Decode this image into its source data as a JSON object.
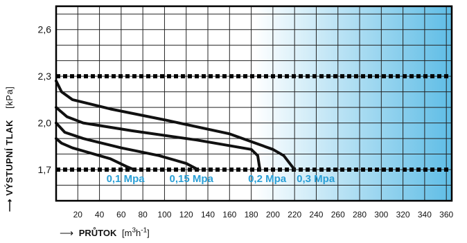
{
  "chart_data": {
    "type": "line",
    "title": "",
    "xlabel": {
      "name": "PRŮTOK",
      "unit_prefix": "[m",
      "unit_sup1": "3",
      "unit_mid": "h",
      "unit_sup2": "-1",
      "unit_suffix": "]"
    },
    "ylabel": {
      "name": "VÝSTUPNÍ TLAK",
      "unit": "[kPa]"
    },
    "xlim": [
      0,
      365
    ],
    "ylim": [
      1.5,
      2.75
    ],
    "x_ticks": [
      "20",
      "40",
      "60",
      "80",
      "100",
      "120",
      "140",
      "160",
      "180",
      "200",
      "220",
      "240",
      "260",
      "280",
      "300",
      "320",
      "340",
      "360"
    ],
    "y_ticks": [
      "1,7",
      "2,0",
      "2,3",
      "2,6"
    ],
    "grid": true,
    "reference_lines": [
      2.3,
      1.7
    ],
    "series": [
      {
        "name": "0,1 Mpa",
        "points": [
          [
            0,
            1.9
          ],
          [
            5,
            1.87
          ],
          [
            15,
            1.84
          ],
          [
            30,
            1.81
          ],
          [
            50,
            1.77
          ],
          [
            65,
            1.72
          ],
          [
            72,
            1.7
          ]
        ]
      },
      {
        "name": "0,15 Mpa",
        "points": [
          [
            0,
            2.0
          ],
          [
            8,
            1.94
          ],
          [
            25,
            1.9
          ],
          [
            60,
            1.84
          ],
          [
            95,
            1.79
          ],
          [
            120,
            1.74
          ],
          [
            131,
            1.7
          ]
        ]
      },
      {
        "name": "0,2 Mpa",
        "points": [
          [
            0,
            2.1
          ],
          [
            10,
            2.04
          ],
          [
            25,
            2.0
          ],
          [
            70,
            1.95
          ],
          [
            130,
            1.89
          ],
          [
            180,
            1.83
          ],
          [
            186,
            1.79
          ],
          [
            188,
            1.7
          ]
        ]
      },
      {
        "name": "0,3 Mpa",
        "points": [
          [
            0,
            2.27
          ],
          [
            5,
            2.2
          ],
          [
            15,
            2.15
          ],
          [
            50,
            2.09
          ],
          [
            100,
            2.02
          ],
          [
            160,
            1.93
          ],
          [
            200,
            1.83
          ],
          [
            210,
            1.79
          ],
          [
            220,
            1.7
          ]
        ]
      }
    ],
    "colors": {
      "curve": "#111111",
      "label": "#2a9fd6",
      "gradient_end": "#5fbde6",
      "grid": "#222222"
    }
  }
}
